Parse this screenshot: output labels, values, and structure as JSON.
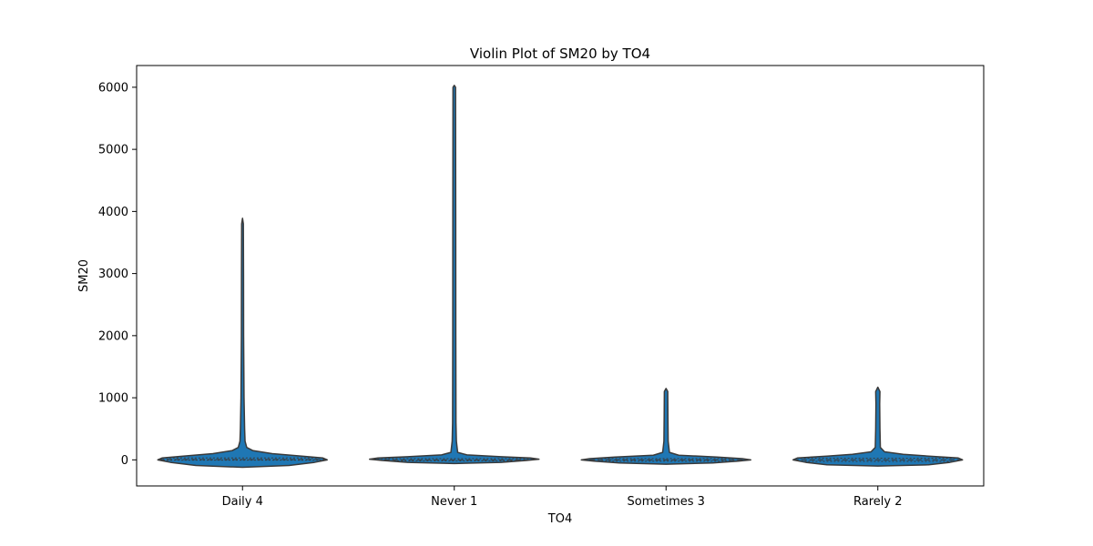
{
  "chart_data": {
    "type": "violin",
    "title": "Violin Plot of SM20 by TO4",
    "xlabel": "TO4",
    "ylabel": "SM20",
    "categories": [
      "Daily 4",
      "Never 1",
      "Sometimes 3",
      "Rarely 2"
    ],
    "ylim": [
      -420,
      6350
    ],
    "yticks": [
      0,
      1000,
      2000,
      3000,
      4000,
      5000,
      6000
    ],
    "grid": false,
    "legend": "none",
    "violin_color": "#1f77b4",
    "edge_color": "#3a3a3a",
    "violins": [
      {
        "category": "Daily 4",
        "profile": [
          [
            -120,
            0.0
          ],
          [
            -90,
            0.55
          ],
          [
            -40,
            0.85
          ],
          [
            0,
            1.0
          ],
          [
            30,
            0.95
          ],
          [
            60,
            0.7
          ],
          [
            100,
            0.35
          ],
          [
            150,
            0.12
          ],
          [
            200,
            0.05
          ],
          [
            300,
            0.03
          ],
          [
            500,
            0.025
          ],
          [
            1000,
            0.018
          ],
          [
            2000,
            0.013
          ],
          [
            3000,
            0.012
          ],
          [
            3800,
            0.01
          ],
          [
            3890,
            0.0
          ]
        ],
        "quartiles": [
          -5,
          5,
          30
        ]
      },
      {
        "category": "Never 1",
        "profile": [
          [
            -60,
            0.0
          ],
          [
            -40,
            0.55
          ],
          [
            -10,
            0.85
          ],
          [
            10,
            1.0
          ],
          [
            30,
            0.9
          ],
          [
            50,
            0.55
          ],
          [
            80,
            0.15
          ],
          [
            120,
            0.04
          ],
          [
            300,
            0.025
          ],
          [
            600,
            0.02
          ],
          [
            2000,
            0.018
          ],
          [
            4000,
            0.017
          ],
          [
            6000,
            0.015
          ],
          [
            6030,
            0.0
          ]
        ],
        "quartiles": [
          -15,
          0,
          20
        ]
      },
      {
        "category": "Sometimes 3",
        "profile": [
          [
            -70,
            0.0
          ],
          [
            -50,
            0.55
          ],
          [
            -20,
            0.85
          ],
          [
            0,
            1.0
          ],
          [
            20,
            0.9
          ],
          [
            45,
            0.6
          ],
          [
            75,
            0.15
          ],
          [
            120,
            0.04
          ],
          [
            300,
            0.025
          ],
          [
            700,
            0.022
          ],
          [
            1100,
            0.02
          ],
          [
            1150,
            0.0
          ]
        ],
        "quartiles": [
          -20,
          0,
          20
        ]
      },
      {
        "category": "Rarely 2",
        "profile": [
          [
            -100,
            0.0
          ],
          [
            -80,
            0.6
          ],
          [
            -40,
            0.85
          ],
          [
            0,
            1.0
          ],
          [
            30,
            0.95
          ],
          [
            60,
            0.6
          ],
          [
            90,
            0.3
          ],
          [
            130,
            0.08
          ],
          [
            200,
            0.03
          ],
          [
            500,
            0.025
          ],
          [
            900,
            0.022
          ],
          [
            1100,
            0.025
          ],
          [
            1170,
            0.0
          ]
        ],
        "quartiles": [
          -25,
          0,
          25
        ]
      }
    ]
  }
}
